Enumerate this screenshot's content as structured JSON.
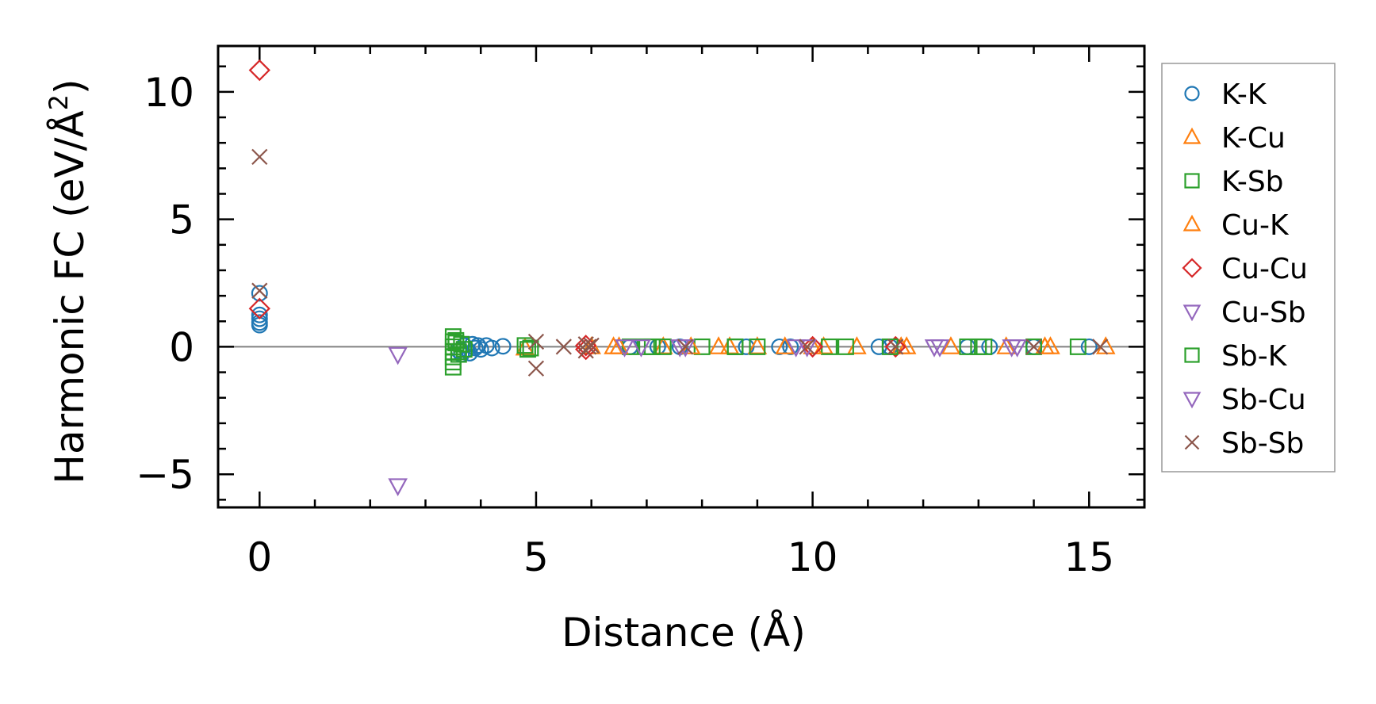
{
  "chart_data": {
    "type": "scatter",
    "xlabel": "Distance (Å)",
    "ylabel_main": "Harmonic FC (eV/Å",
    "ylabel_sup": "2",
    "ylabel_tail": ")",
    "xlim": [
      -0.75,
      16.0
    ],
    "ylim": [
      -6.3,
      11.8
    ],
    "xticks": [
      0,
      5,
      10,
      15
    ],
    "yticks": [
      -5,
      0,
      5,
      10
    ],
    "xtick_labels": [
      "0",
      "5",
      "10",
      "15"
    ],
    "ytick_labels": [
      "−5",
      "0",
      "5",
      "10"
    ],
    "x_minor_step": 1,
    "y_minor_step": 1,
    "zero_line": true,
    "grid": false,
    "legend_position": "outside-right",
    "series": [
      {
        "name": "K-K",
        "marker": "circle",
        "color": "#1f77b4",
        "x": [
          0,
          0,
          0,
          0,
          0,
          3.6,
          3.65,
          3.7,
          3.75,
          3.8,
          3.85,
          3.9,
          3.95,
          4.0,
          4.1,
          4.2,
          4.4,
          6.7,
          7.2,
          7.6,
          8.8,
          9.4,
          9.6,
          11.2,
          11.4,
          12.8,
          13.2,
          14.0,
          15.0
        ],
        "y": [
          2.1,
          1.25,
          1.1,
          0.95,
          0.85,
          -0.15,
          -0.3,
          0.05,
          -0.1,
          -0.25,
          0.1,
          -0.05,
          0.05,
          -0.1,
          0.05,
          -0.05,
          0.02,
          0,
          0,
          0,
          0,
          0,
          0,
          0,
          0,
          0,
          0,
          0,
          0
        ]
      },
      {
        "name": "K-Cu",
        "marker": "triangle-up",
        "color": "#ff7f0e",
        "x": [
          4.8,
          6.0,
          6.4,
          7.3,
          8.3,
          8.5,
          9.0,
          10.2,
          10.8,
          11.7,
          12.5,
          14.2,
          15.3
        ],
        "y": [
          -0.05,
          0,
          0,
          0,
          0,
          0,
          0,
          0,
          0,
          0,
          0,
          0,
          0
        ]
      },
      {
        "name": "K-Sb",
        "marker": "square",
        "color": "#2ca02c",
        "x": [
          3.5,
          3.5,
          3.5,
          3.5,
          3.5,
          3.5,
          3.5,
          3.55,
          3.6,
          3.65,
          3.7,
          4.8,
          4.85,
          6.7,
          7.0,
          7.3,
          8.0,
          8.6,
          9.0,
          10.3,
          10.6,
          12.8,
          13.0,
          14.0,
          14.8
        ],
        "y": [
          0.4,
          0.2,
          0.0,
          -0.2,
          -0.4,
          -0.6,
          -0.8,
          0.25,
          -0.2,
          0.1,
          -0.1,
          0.05,
          -0.1,
          0,
          0,
          0,
          0,
          0,
          0,
          0,
          0,
          0,
          0,
          0,
          0
        ]
      },
      {
        "name": "Cu-K",
        "marker": "triangle-up",
        "color": "#ff7f0e",
        "x": [
          6.5,
          7.8,
          9.5,
          10.0,
          11.6,
          13.5,
          14.3
        ],
        "y": [
          0,
          0,
          0,
          0,
          0,
          0,
          0
        ]
      },
      {
        "name": "Cu-Cu",
        "marker": "diamond",
        "color": "#d62728",
        "x": [
          0,
          0,
          5.9,
          5.9,
          10.0,
          11.5
        ],
        "y": [
          10.85,
          1.5,
          0.05,
          -0.1,
          0,
          0
        ]
      },
      {
        "name": "Cu-Sb",
        "marker": "triangle-down",
        "color": "#9467bd",
        "x": [
          2.5,
          2.5,
          6.6,
          7.6,
          9.7,
          12.2,
          13.6
        ],
        "y": [
          -0.3,
          -5.45,
          0,
          0,
          0,
          0,
          0
        ]
      },
      {
        "name": "Sb-K",
        "marker": "square",
        "color": "#2ca02c",
        "x": [
          3.55,
          3.6,
          4.9,
          7.1,
          8.6,
          11.4,
          13.1
        ],
        "y": [
          0.15,
          -0.3,
          -0.05,
          0,
          0,
          0,
          0
        ]
      },
      {
        "name": "Sb-Cu",
        "marker": "triangle-down",
        "color": "#9467bd",
        "x": [
          6.9,
          7.7,
          9.9,
          12.3,
          13.7
        ],
        "y": [
          0,
          0,
          0,
          0,
          0
        ]
      },
      {
        "name": "Sb-Sb",
        "marker": "x",
        "color": "#8c564b",
        "x": [
          0,
          0,
          5.0,
          5.0,
          5.5,
          5.9,
          5.9,
          5.95,
          6.0,
          7.7,
          9.9,
          11.5,
          14.0,
          15.2
        ],
        "y": [
          7.45,
          2.2,
          0.2,
          -0.85,
          0,
          0.1,
          -0.15,
          0,
          0.05,
          0,
          0,
          0,
          0,
          0
        ]
      }
    ]
  }
}
